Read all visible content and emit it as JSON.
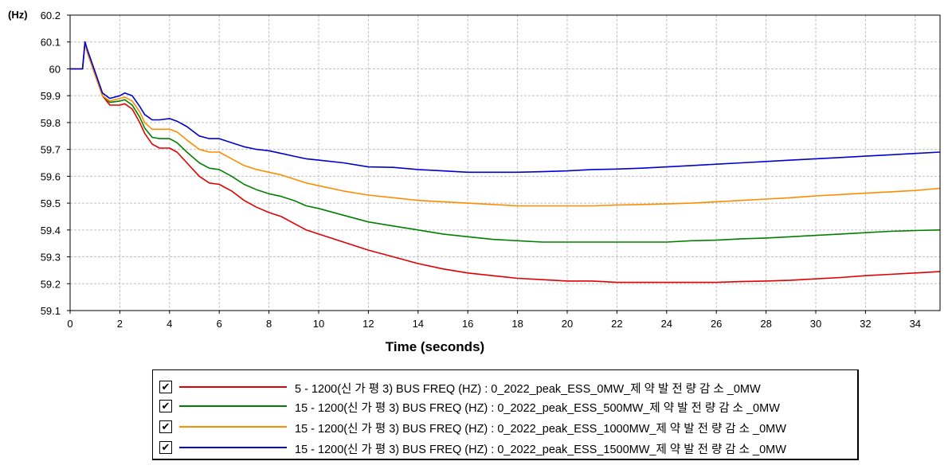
{
  "chart_data": {
    "type": "line",
    "y_unit_label": "(Hz)",
    "xlabel": "Time (seconds)",
    "xlim": [
      0,
      35
    ],
    "ylim": [
      59.1,
      60.2
    ],
    "x_ticks": [
      0,
      2,
      4,
      6,
      8,
      10,
      12,
      14,
      16,
      18,
      20,
      22,
      24,
      26,
      28,
      30,
      32,
      34
    ],
    "y_ticks": [
      59.1,
      59.2,
      59.3,
      59.4,
      59.5,
      59.6,
      59.7,
      59.8,
      59.9,
      60,
      60.1,
      60.2
    ],
    "grid": true,
    "legend_position": "bottom",
    "series": [
      {
        "name": "5 - 1200(신 가 평 3) BUS FREQ (HZ) : 0_2022_peak_ESS_0MW_제 약 발 전 량 감 소 _0MW",
        "color": "#e00000",
        "points": [
          [
            0,
            60
          ],
          [
            0.5,
            60
          ],
          [
            0.6,
            60.1
          ],
          [
            0.7,
            60.06
          ],
          [
            1,
            59.98
          ],
          [
            1.3,
            59.9
          ],
          [
            1.6,
            59.865
          ],
          [
            2,
            59.865
          ],
          [
            2.2,
            59.87
          ],
          [
            2.5,
            59.85
          ],
          [
            2.8,
            59.8
          ],
          [
            3,
            59.76
          ],
          [
            3.3,
            59.72
          ],
          [
            3.6,
            59.705
          ],
          [
            4,
            59.705
          ],
          [
            4.3,
            59.69
          ],
          [
            4.7,
            59.65
          ],
          [
            5.2,
            59.6
          ],
          [
            5.6,
            59.575
          ],
          [
            6,
            59.57
          ],
          [
            6.5,
            59.545
          ],
          [
            7,
            59.51
          ],
          [
            7.5,
            59.485
          ],
          [
            8,
            59.465
          ],
          [
            8.5,
            59.45
          ],
          [
            9,
            59.425
          ],
          [
            9.5,
            59.4
          ],
          [
            10,
            59.385
          ],
          [
            11,
            59.355
          ],
          [
            12,
            59.325
          ],
          [
            13,
            59.3
          ],
          [
            14,
            59.275
          ],
          [
            15,
            59.255
          ],
          [
            16,
            59.24
          ],
          [
            17,
            59.23
          ],
          [
            18,
            59.22
          ],
          [
            19,
            59.215
          ],
          [
            20,
            59.21
          ],
          [
            21,
            59.21
          ],
          [
            22,
            59.205
          ],
          [
            23,
            59.205
          ],
          [
            24,
            59.205
          ],
          [
            25,
            59.205
          ],
          [
            26,
            59.205
          ],
          [
            27,
            59.208
          ],
          [
            28,
            59.21
          ],
          [
            29,
            59.213
          ],
          [
            30,
            59.218
          ],
          [
            31,
            59.223
          ],
          [
            32,
            59.23
          ],
          [
            33,
            59.235
          ],
          [
            34,
            59.24
          ],
          [
            35,
            59.245
          ]
        ]
      },
      {
        "name": "15 - 1200(신 가 평 3) BUS FREQ (HZ) : 0_2022_peak_ESS_500MW_제 약 발 전 량 감 소 _0MW",
        "color": "#008000",
        "points": [
          [
            0,
            60
          ],
          [
            0.5,
            60
          ],
          [
            0.6,
            60.1
          ],
          [
            0.7,
            60.06
          ],
          [
            1,
            59.98
          ],
          [
            1.3,
            59.9
          ],
          [
            1.6,
            59.875
          ],
          [
            2,
            59.88
          ],
          [
            2.2,
            59.885
          ],
          [
            2.5,
            59.865
          ],
          [
            2.8,
            59.82
          ],
          [
            3,
            59.78
          ],
          [
            3.3,
            59.745
          ],
          [
            3.6,
            59.74
          ],
          [
            4,
            59.74
          ],
          [
            4.3,
            59.725
          ],
          [
            4.7,
            59.69
          ],
          [
            5.2,
            59.65
          ],
          [
            5.6,
            59.63
          ],
          [
            6,
            59.625
          ],
          [
            6.5,
            59.6
          ],
          [
            7,
            59.57
          ],
          [
            7.5,
            59.55
          ],
          [
            8,
            59.535
          ],
          [
            8.5,
            59.525
          ],
          [
            9,
            59.51
          ],
          [
            9.5,
            59.49
          ],
          [
            10,
            59.48
          ],
          [
            11,
            59.455
          ],
          [
            12,
            59.43
          ],
          [
            13,
            59.415
          ],
          [
            14,
            59.4
          ],
          [
            15,
            59.385
          ],
          [
            16,
            59.375
          ],
          [
            17,
            59.365
          ],
          [
            18,
            59.36
          ],
          [
            19,
            59.355
          ],
          [
            20,
            59.355
          ],
          [
            21,
            59.355
          ],
          [
            22,
            59.355
          ],
          [
            23,
            59.355
          ],
          [
            24,
            59.355
          ],
          [
            25,
            59.36
          ],
          [
            26,
            59.362
          ],
          [
            27,
            59.367
          ],
          [
            28,
            59.37
          ],
          [
            29,
            59.375
          ],
          [
            30,
            59.38
          ],
          [
            31,
            59.385
          ],
          [
            32,
            59.39
          ],
          [
            33,
            59.395
          ],
          [
            34,
            59.398
          ],
          [
            35,
            59.4
          ]
        ]
      },
      {
        "name": "15 - 1200(신 가 평 3) BUS FREQ (HZ) : 0_2022_peak_ESS_1000MW_제 약 발 전 량 감 소 _0MW",
        "color": "#ff8c00",
        "points": [
          [
            0,
            60
          ],
          [
            0.5,
            60
          ],
          [
            0.6,
            60.1
          ],
          [
            0.7,
            60.06
          ],
          [
            1,
            59.98
          ],
          [
            1.3,
            59.9
          ],
          [
            1.6,
            59.88
          ],
          [
            2,
            59.89
          ],
          [
            2.2,
            59.895
          ],
          [
            2.5,
            59.88
          ],
          [
            2.8,
            59.84
          ],
          [
            3,
            59.8
          ],
          [
            3.3,
            59.775
          ],
          [
            3.6,
            59.775
          ],
          [
            4,
            59.775
          ],
          [
            4.3,
            59.765
          ],
          [
            4.7,
            59.735
          ],
          [
            5.2,
            59.7
          ],
          [
            5.6,
            59.69
          ],
          [
            6,
            59.69
          ],
          [
            6.5,
            59.665
          ],
          [
            7,
            59.64
          ],
          [
            7.5,
            59.625
          ],
          [
            8,
            59.615
          ],
          [
            8.5,
            59.605
          ],
          [
            9,
            59.59
          ],
          [
            9.5,
            59.575
          ],
          [
            10,
            59.565
          ],
          [
            11,
            59.545
          ],
          [
            12,
            59.53
          ],
          [
            13,
            59.52
          ],
          [
            14,
            59.51
          ],
          [
            15,
            59.505
          ],
          [
            16,
            59.5
          ],
          [
            17,
            59.495
          ],
          [
            18,
            59.49
          ],
          [
            19,
            59.49
          ],
          [
            20,
            59.49
          ],
          [
            21,
            59.49
          ],
          [
            22,
            59.493
          ],
          [
            23,
            59.495
          ],
          [
            24,
            59.497
          ],
          [
            25,
            59.5
          ],
          [
            26,
            59.505
          ],
          [
            27,
            59.51
          ],
          [
            28,
            59.515
          ],
          [
            29,
            59.52
          ],
          [
            30,
            59.527
          ],
          [
            31,
            59.532
          ],
          [
            32,
            59.537
          ],
          [
            33,
            59.542
          ],
          [
            34,
            59.547
          ],
          [
            35,
            59.555
          ]
        ]
      },
      {
        "name": "15 - 1200(신 가 평 3) BUS FREQ (HZ) : 0_2022_peak_ESS_1500MW_제 약 발 전 량 감 소 _0MW",
        "color": "#0000d0",
        "points": [
          [
            0,
            60
          ],
          [
            0.5,
            60
          ],
          [
            0.6,
            60.1
          ],
          [
            0.7,
            60.07
          ],
          [
            1,
            59.99
          ],
          [
            1.3,
            59.91
          ],
          [
            1.6,
            59.89
          ],
          [
            2,
            59.9
          ],
          [
            2.2,
            59.91
          ],
          [
            2.5,
            59.9
          ],
          [
            2.8,
            59.86
          ],
          [
            3,
            59.83
          ],
          [
            3.3,
            59.81
          ],
          [
            3.6,
            59.81
          ],
          [
            4,
            59.815
          ],
          [
            4.3,
            59.805
          ],
          [
            4.7,
            59.785
          ],
          [
            5.2,
            59.75
          ],
          [
            5.6,
            59.74
          ],
          [
            6,
            59.74
          ],
          [
            6.5,
            59.725
          ],
          [
            7,
            59.71
          ],
          [
            7.5,
            59.7
          ],
          [
            8,
            59.695
          ],
          [
            8.5,
            59.685
          ],
          [
            9,
            59.675
          ],
          [
            9.5,
            59.665
          ],
          [
            10,
            59.66
          ],
          [
            11,
            59.65
          ],
          [
            12,
            59.635
          ],
          [
            13,
            59.633
          ],
          [
            14,
            59.625
          ],
          [
            15,
            59.62
          ],
          [
            16,
            59.615
          ],
          [
            17,
            59.615
          ],
          [
            18,
            59.615
          ],
          [
            19,
            59.617
          ],
          [
            20,
            59.62
          ],
          [
            21,
            59.625
          ],
          [
            22,
            59.627
          ],
          [
            23,
            59.63
          ],
          [
            24,
            59.635
          ],
          [
            25,
            59.64
          ],
          [
            26,
            59.645
          ],
          [
            27,
            59.65
          ],
          [
            28,
            59.655
          ],
          [
            29,
            59.66
          ],
          [
            30,
            59.665
          ],
          [
            31,
            59.67
          ],
          [
            32,
            59.675
          ],
          [
            33,
            59.68
          ],
          [
            34,
            59.685
          ],
          [
            35,
            59.69
          ]
        ]
      }
    ]
  },
  "legend": {
    "check_glyph": "✔",
    "items": [
      {
        "text": "5 - 1200(신 가 평 3) BUS FREQ (HZ) : 0_2022_peak_ESS_0MW_제 약 발 전 량 감 소 _0MW",
        "color": "#e00000",
        "checked": true
      },
      {
        "text": "15 - 1200(신 가 평 3) BUS FREQ (HZ) : 0_2022_peak_ESS_500MW_제 약 발 전 량 감 소 _0MW",
        "color": "#008000",
        "checked": true
      },
      {
        "text": "15 - 1200(신 가 평 3) BUS FREQ (HZ) : 0_2022_peak_ESS_1000MW_제 약 발 전 량 감 소 _0MW",
        "color": "#ff8c00",
        "checked": true
      },
      {
        "text": "15 - 1200(신 가 평 3) BUS FREQ (HZ) : 0_2022_peak_ESS_1500MW_제 약 발 전 량 감 소 _0MW",
        "color": "#0000d0",
        "checked": true
      }
    ]
  }
}
